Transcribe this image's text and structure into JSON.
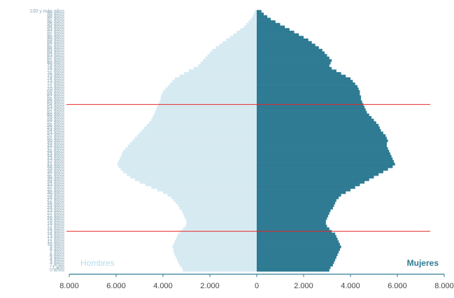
{
  "chart_data": {
    "type": "pyramid",
    "categories": [
      "0 años",
      "1 año",
      "2 años",
      "3 años",
      "4 años",
      "5 años",
      "6 años",
      "7 años",
      "8 años",
      "9 años",
      "10 años",
      "11 años",
      "12 años",
      "13 años",
      "14 años",
      "15 años",
      "16 años",
      "17 años",
      "18 años",
      "19 años",
      "20 años",
      "21 años",
      "22 años",
      "23 años",
      "24 años",
      "25 años",
      "26 años",
      "27 años",
      "28 años",
      "29 años",
      "30 años",
      "31 años",
      "32 años",
      "33 años",
      "34 años",
      "35 años",
      "36 años",
      "37 años",
      "38 años",
      "39 años",
      "40 años",
      "41 años",
      "42 años",
      "43 años",
      "44 años",
      "45 años",
      "46 años",
      "47 años",
      "48 años",
      "49 años",
      "50 años",
      "51 años",
      "52 años",
      "53 años",
      "54 años",
      "55 años",
      "56 años",
      "57 años",
      "58 años",
      "59 años",
      "60 años",
      "61 años",
      "62 años",
      "63 años",
      "64 años",
      "65 años",
      "66 años",
      "67 años",
      "68 años",
      "69 años",
      "70 años",
      "71 años",
      "72 años",
      "73 años",
      "74 años",
      "75 años",
      "76 años",
      "77 años",
      "78 años",
      "79 años",
      "80 años",
      "81 años",
      "82 años",
      "83 años",
      "84 años",
      "85 años",
      "86 años",
      "87 años",
      "88 años",
      "89 años",
      "90 años",
      "91 años",
      "92 años",
      "93 años",
      "94 años",
      "95 años",
      "96 años",
      "97 años",
      "98 años",
      "99 años",
      "100 y más años"
    ],
    "series": [
      {
        "name": "Hombres",
        "color": "#d6eaf2",
        "values": [
          -3150,
          -3200,
          -3300,
          -3350,
          -3400,
          -3450,
          -3500,
          -3550,
          -3550,
          -3600,
          -3550,
          -3500,
          -3450,
          -3400,
          -3350,
          -3250,
          -3150,
          -3050,
          -3000,
          -3000,
          -3050,
          -3100,
          -3150,
          -3200,
          -3300,
          -3350,
          -3450,
          -3550,
          -3650,
          -3800,
          -4000,
          -4250,
          -4500,
          -4750,
          -5000,
          -5200,
          -5400,
          -5550,
          -5700,
          -5800,
          -5900,
          -5950,
          -5900,
          -5850,
          -5800,
          -5750,
          -5700,
          -5600,
          -5500,
          -5400,
          -5300,
          -5200,
          -5100,
          -5000,
          -4900,
          -4800,
          -4700,
          -4600,
          -4500,
          -4450,
          -4400,
          -4350,
          -4300,
          -4250,
          -4200,
          -4150,
          -4100,
          -4100,
          -4050,
          -4000,
          -3900,
          -3800,
          -3700,
          -3600,
          -3500,
          -3300,
          -3100,
          -2900,
          -2700,
          -2500,
          -2400,
          -2300,
          -2200,
          -2100,
          -2000,
          -1900,
          -1750,
          -1600,
          -1450,
          -1300,
          -1150,
          -1000,
          -850,
          -700,
          -550,
          -450,
          -350,
          -250,
          -180,
          -120,
          -80
        ]
      },
      {
        "name": "Mujeres",
        "color": "#2e7b93",
        "values": [
          3100,
          3150,
          3250,
          3300,
          3350,
          3400,
          3450,
          3500,
          3550,
          3600,
          3550,
          3500,
          3450,
          3400,
          3350,
          3200,
          3100,
          3000,
          2950,
          2950,
          3000,
          3050,
          3100,
          3150,
          3250,
          3300,
          3350,
          3400,
          3500,
          3600,
          3800,
          4000,
          4200,
          4400,
          4600,
          4800,
          5000,
          5200,
          5400,
          5600,
          5800,
          5900,
          5850,
          5800,
          5750,
          5700,
          5650,
          5600,
          5550,
          5550,
          5600,
          5550,
          5500,
          5400,
          5300,
          5250,
          5200,
          5100,
          5000,
          4900,
          4800,
          4700,
          4650,
          4600,
          4550,
          4500,
          4450,
          4450,
          4400,
          4400,
          4350,
          4300,
          4200,
          4100,
          4000,
          3800,
          3600,
          3400,
          3200,
          3100,
          3150,
          3200,
          3100,
          3000,
          2900,
          2800,
          2650,
          2500,
          2350,
          2200,
          2000,
          1800,
          1600,
          1400,
          1200,
          1000,
          800,
          600,
          450,
          300,
          200
        ]
      }
    ],
    "xlim": [
      -8000,
      8000
    ],
    "xticks": [
      {
        "value": -8000,
        "label": "8.000"
      },
      {
        "value": -6000,
        "label": "6.000"
      },
      {
        "value": -4000,
        "label": "4.000"
      },
      {
        "value": -2000,
        "label": "2.000"
      },
      0,
      {
        "value": 2000,
        "label": "2.000"
      },
      {
        "value": 4000,
        "label": "4.000"
      },
      {
        "value": 6000,
        "label": "6.000"
      },
      {
        "value": 8000,
        "label": "8.000"
      }
    ],
    "reference_ages": [
      15,
      64
    ],
    "reference_color": "#e8282b"
  }
}
